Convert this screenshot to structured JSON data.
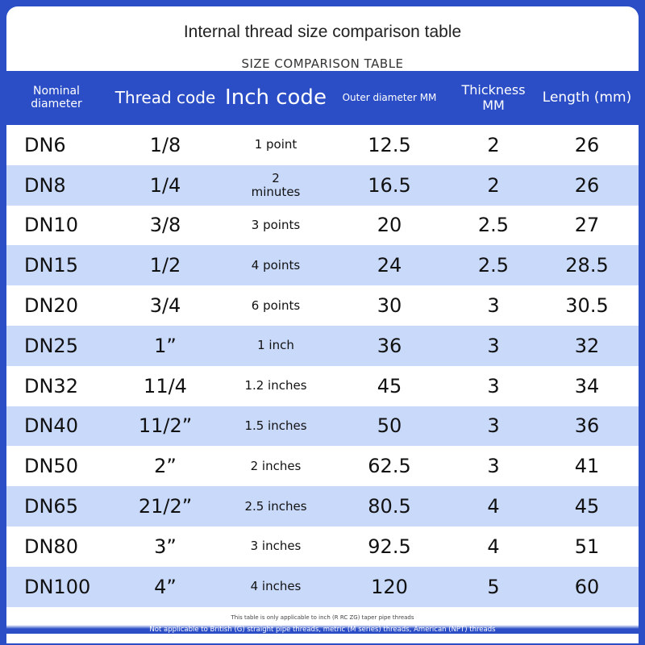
{
  "header": {
    "title": "Internal thread size comparison table",
    "subtitle": "SIZE COMPARISON TABLE"
  },
  "table": {
    "columns": [
      "Nominal diameter",
      "Thread code",
      "Inch code",
      "Outer diameter MM",
      "Thickness MM",
      "Length (mm)"
    ],
    "rows": [
      [
        "DN6",
        "1/8",
        "1 point",
        "12.5",
        "2",
        "26"
      ],
      [
        "DN8",
        "1/4",
        "2\nminutes",
        "16.5",
        "2",
        "26"
      ],
      [
        "DN10",
        "3/8",
        "3 points",
        "20",
        "2.5",
        "27"
      ],
      [
        "DN15",
        "1/2",
        "4 points",
        "24",
        "2.5",
        "28.5"
      ],
      [
        "DN20",
        "3/4",
        "6 points",
        "30",
        "3",
        "30.5"
      ],
      [
        "DN25",
        "1”",
        "1 inch",
        "36",
        "3",
        "32"
      ],
      [
        "DN32",
        "11/4",
        "1.2 inches",
        "45",
        "3",
        "34"
      ],
      [
        "DN40",
        "11/2”",
        "1.5 inches",
        "50",
        "3",
        "36"
      ],
      [
        "DN50",
        "2”",
        "2 inches",
        "62.5",
        "3",
        "41"
      ],
      [
        "DN65",
        "21/2”",
        "2.5 inches",
        "80.5",
        "4",
        "45"
      ],
      [
        "DN80",
        "3”",
        "3 inches",
        "92.5",
        "4",
        "51"
      ],
      [
        "DN100",
        "4”",
        "4 inches",
        "120",
        "5",
        "60"
      ]
    ]
  },
  "footer": {
    "note1": "This table is only applicable to inch (R RC ZG) taper pipe threads",
    "note2": "Not applicable to British (G) straight pipe threads, metric (M series) threads, American (NPT) threads"
  }
}
